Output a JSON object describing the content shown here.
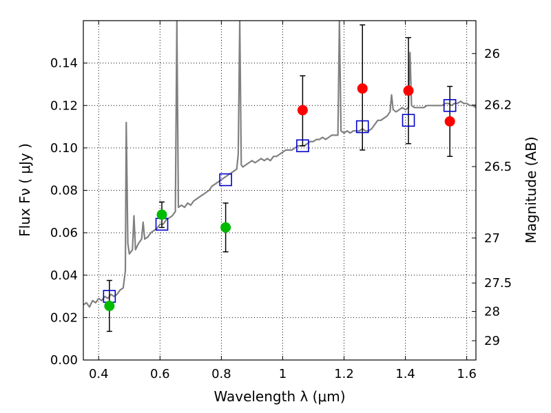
{
  "chart_data": {
    "type": "scatter",
    "xlabel": "Wavelength  λ (μm)",
    "ylabel": "Flux  Fν  ( μJy )",
    "y2label": "Magnitude (AB)",
    "xlim": [
      0.35,
      1.63
    ],
    "ylim": [
      0.0,
      0.16
    ],
    "grid": true,
    "x_ticks": [
      0.4,
      0.6,
      0.8,
      1.0,
      1.2,
      1.4,
      1.6
    ],
    "x_tick_labels": [
      "0.4",
      "0.6",
      "0.8",
      "1",
      "1.2",
      "1.4",
      "1.6"
    ],
    "y_ticks": [
      0.0,
      0.02,
      0.04,
      0.06,
      0.08,
      0.1,
      0.12,
      0.14
    ],
    "y_tick_labels": [
      "0.00",
      "0.02",
      "0.04",
      "0.06",
      "0.08",
      "0.10",
      "0.12",
      "0.14"
    ],
    "mag_ticks": [
      {
        "label": "26",
        "flux": 0.1445
      },
      {
        "label": "26.2",
        "flux": 0.1202
      },
      {
        "label": "26.5",
        "flux": 0.0912
      },
      {
        "label": "27",
        "flux": 0.0575
      },
      {
        "label": "27.5",
        "flux": 0.0363
      },
      {
        "label": "28",
        "flux": 0.0229
      },
      {
        "label": "29",
        "flux": 0.0091
      }
    ],
    "colors": {
      "model": "#808080",
      "green_points": "#00bb00",
      "red_points": "#ff0000",
      "model_squares": "#0000cc",
      "errorbars": "#000000",
      "grid": "#000000"
    },
    "model_spectrum": [
      [
        0.35,
        0.026
      ],
      [
        0.36,
        0.027
      ],
      [
        0.37,
        0.025
      ],
      [
        0.38,
        0.028
      ],
      [
        0.39,
        0.027
      ],
      [
        0.4,
        0.029
      ],
      [
        0.41,
        0.028
      ],
      [
        0.42,
        0.03
      ],
      [
        0.43,
        0.029
      ],
      [
        0.44,
        0.031
      ],
      [
        0.45,
        0.03
      ],
      [
        0.46,
        0.031
      ],
      [
        0.47,
        0.033
      ],
      [
        0.48,
        0.034
      ],
      [
        0.487,
        0.042
      ],
      [
        0.49,
        0.112
      ],
      [
        0.495,
        0.055
      ],
      [
        0.5,
        0.05
      ],
      [
        0.51,
        0.052
      ],
      [
        0.515,
        0.068
      ],
      [
        0.52,
        0.052
      ],
      [
        0.53,
        0.055
      ],
      [
        0.54,
        0.057
      ],
      [
        0.545,
        0.065
      ],
      [
        0.55,
        0.057
      ],
      [
        0.56,
        0.058
      ],
      [
        0.57,
        0.06
      ],
      [
        0.58,
        0.061
      ],
      [
        0.59,
        0.062
      ],
      [
        0.6,
        0.064
      ],
      [
        0.61,
        0.064
      ],
      [
        0.62,
        0.066
      ],
      [
        0.63,
        0.067
      ],
      [
        0.64,
        0.068
      ],
      [
        0.65,
        0.07
      ],
      [
        0.655,
        0.16
      ],
      [
        0.66,
        0.072
      ],
      [
        0.67,
        0.073
      ],
      [
        0.68,
        0.072
      ],
      [
        0.69,
        0.074
      ],
      [
        0.7,
        0.073
      ],
      [
        0.71,
        0.075
      ],
      [
        0.72,
        0.076
      ],
      [
        0.73,
        0.077
      ],
      [
        0.74,
        0.078
      ],
      [
        0.75,
        0.079
      ],
      [
        0.76,
        0.08
      ],
      [
        0.77,
        0.082
      ],
      [
        0.78,
        0.083
      ],
      [
        0.79,
        0.084
      ],
      [
        0.8,
        0.085
      ],
      [
        0.81,
        0.086
      ],
      [
        0.82,
        0.087
      ],
      [
        0.83,
        0.088
      ],
      [
        0.84,
        0.089
      ],
      [
        0.85,
        0.09
      ],
      [
        0.855,
        0.097
      ],
      [
        0.86,
        0.16
      ],
      [
        0.865,
        0.092
      ],
      [
        0.87,
        0.091
      ],
      [
        0.88,
        0.092
      ],
      [
        0.89,
        0.093
      ],
      [
        0.9,
        0.094
      ],
      [
        0.91,
        0.093
      ],
      [
        0.92,
        0.094
      ],
      [
        0.93,
        0.095
      ],
      [
        0.94,
        0.094
      ],
      [
        0.95,
        0.095
      ],
      [
        0.96,
        0.094
      ],
      [
        0.97,
        0.096
      ],
      [
        0.98,
        0.096
      ],
      [
        0.99,
        0.097
      ],
      [
        1.0,
        0.098
      ],
      [
        1.01,
        0.099
      ],
      [
        1.02,
        0.099
      ],
      [
        1.03,
        0.099
      ],
      [
        1.04,
        0.1
      ],
      [
        1.05,
        0.101
      ],
      [
        1.06,
        0.101
      ],
      [
        1.07,
        0.101
      ],
      [
        1.08,
        0.102
      ],
      [
        1.09,
        0.103
      ],
      [
        1.1,
        0.103
      ],
      [
        1.11,
        0.104
      ],
      [
        1.12,
        0.104
      ],
      [
        1.13,
        0.105
      ],
      [
        1.14,
        0.104
      ],
      [
        1.15,
        0.105
      ],
      [
        1.16,
        0.106
      ],
      [
        1.17,
        0.106
      ],
      [
        1.18,
        0.106
      ],
      [
        1.185,
        0.16
      ],
      [
        1.19,
        0.108
      ],
      [
        1.2,
        0.107
      ],
      [
        1.21,
        0.108
      ],
      [
        1.22,
        0.107
      ],
      [
        1.23,
        0.108
      ],
      [
        1.24,
        0.108
      ],
      [
        1.25,
        0.108
      ],
      [
        1.26,
        0.109
      ],
      [
        1.27,
        0.108
      ],
      [
        1.28,
        0.108
      ],
      [
        1.29,
        0.109
      ],
      [
        1.3,
        0.111
      ],
      [
        1.31,
        0.113
      ],
      [
        1.32,
        0.113
      ],
      [
        1.33,
        0.114
      ],
      [
        1.34,
        0.115
      ],
      [
        1.35,
        0.117
      ],
      [
        1.355,
        0.125
      ],
      [
        1.36,
        0.118
      ],
      [
        1.37,
        0.117
      ],
      [
        1.38,
        0.118
      ],
      [
        1.39,
        0.119
      ],
      [
        1.4,
        0.118
      ],
      [
        1.41,
        0.119
      ],
      [
        1.415,
        0.145
      ],
      [
        1.42,
        0.12
      ],
      [
        1.43,
        0.119
      ],
      [
        1.44,
        0.119
      ],
      [
        1.45,
        0.119
      ],
      [
        1.46,
        0.119
      ],
      [
        1.47,
        0.12
      ],
      [
        1.48,
        0.12
      ],
      [
        1.49,
        0.12
      ],
      [
        1.5,
        0.12
      ],
      [
        1.51,
        0.12
      ],
      [
        1.52,
        0.12
      ],
      [
        1.53,
        0.121
      ],
      [
        1.54,
        0.121
      ],
      [
        1.55,
        0.12
      ],
      [
        1.56,
        0.121
      ],
      [
        1.57,
        0.121
      ],
      [
        1.58,
        0.122
      ],
      [
        1.59,
        0.121
      ],
      [
        1.6,
        0.121
      ],
      [
        1.61,
        0.12
      ],
      [
        1.62,
        0.12
      ],
      [
        1.63,
        0.119
      ]
    ],
    "model_points": [
      {
        "x": 0.435,
        "y": 0.03
      },
      {
        "x": 0.606,
        "y": 0.064
      },
      {
        "x": 0.814,
        "y": 0.085
      },
      {
        "x": 1.065,
        "y": 0.101
      },
      {
        "x": 1.26,
        "y": 0.11
      },
      {
        "x": 1.41,
        "y": 0.113
      },
      {
        "x": 1.545,
        "y": 0.12
      }
    ],
    "observed_green": [
      {
        "x": 0.435,
        "y": 0.0255,
        "err_low": 0.0135,
        "err_high": 0.0375
      },
      {
        "x": 0.606,
        "y": 0.0685,
        "err_low": 0.0625,
        "err_high": 0.0745
      },
      {
        "x": 0.814,
        "y": 0.0625,
        "err_low": 0.051,
        "err_high": 0.074
      }
    ],
    "observed_red": [
      {
        "x": 1.065,
        "y": 0.1178,
        "err_low": 0.101,
        "err_high": 0.134
      },
      {
        "x": 1.26,
        "y": 0.128,
        "err_low": 0.099,
        "err_high": 0.158
      },
      {
        "x": 1.41,
        "y": 0.127,
        "err_low": 0.102,
        "err_high": 0.152
      },
      {
        "x": 1.545,
        "y": 0.1125,
        "err_low": 0.096,
        "err_high": 0.129
      }
    ]
  }
}
